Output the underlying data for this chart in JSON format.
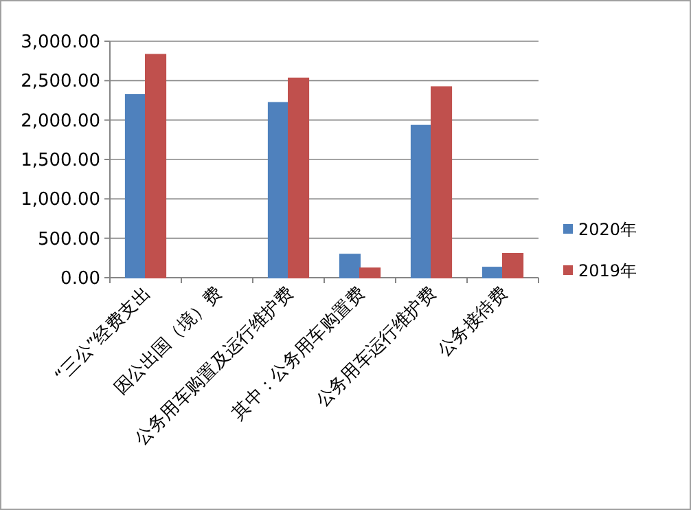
{
  "chart_data": {
    "type": "bar",
    "categories": [
      "“三公”经费支出",
      "因公出国（境）费",
      "公务用车购置及运行维护费",
      "其中：公务用车购置费",
      "公务用车运行维护费",
      "公务接待费"
    ],
    "series": [
      {
        "name": "2020年",
        "color": "#4f81bd",
        "values": [
          2320,
          0,
          2220,
          295,
          1930,
          130
        ]
      },
      {
        "name": "2019年",
        "color": "#c0504d",
        "values": [
          2830,
          0,
          2530,
          120,
          2420,
          305
        ]
      }
    ],
    "ylim": [
      0,
      3000
    ],
    "yticks": [
      {
        "value": 0,
        "label": "0.00"
      },
      {
        "value": 500,
        "label": "500.00"
      },
      {
        "value": 1000,
        "label": "1,000.00"
      },
      {
        "value": 1500,
        "label": "1,500.00"
      },
      {
        "value": 2000,
        "label": "2,000.00"
      },
      {
        "value": 2500,
        "label": "2,500.00"
      },
      {
        "value": 3000,
        "label": "3,000.00"
      }
    ],
    "grid": "y",
    "legend": "right"
  }
}
